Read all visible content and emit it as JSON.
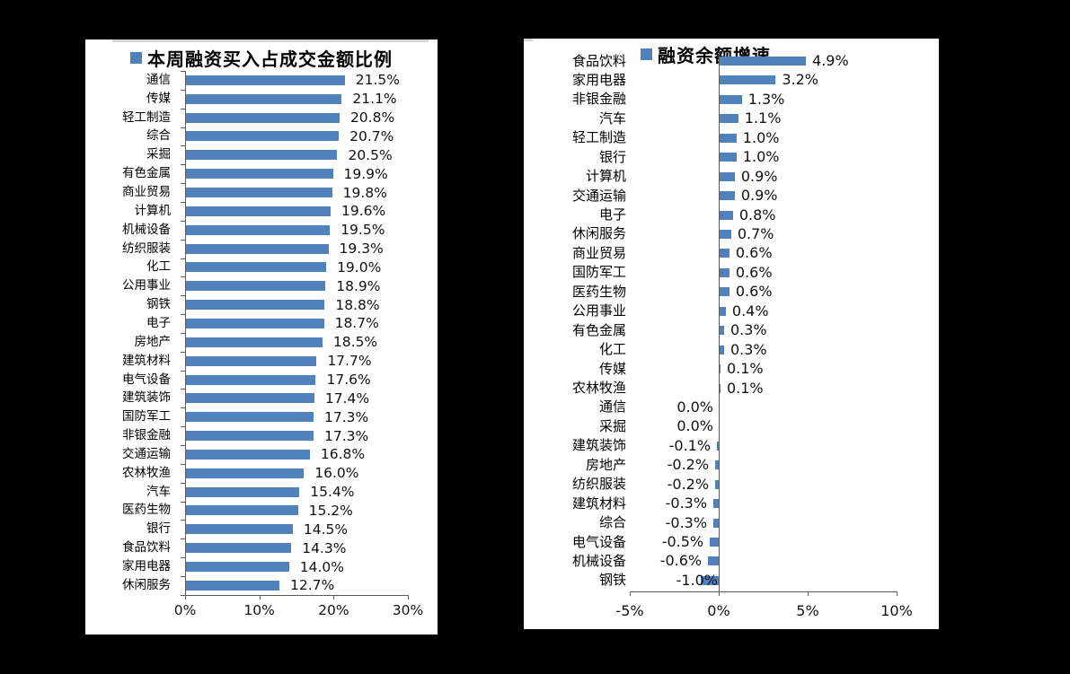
{
  "style": {
    "background": "#000000",
    "panel_background": "#ffffff",
    "bar_color": "#4f81bd",
    "axis_color": "#595959",
    "text_color": "#000000"
  },
  "chart_data": [
    {
      "type": "bar",
      "orientation": "horizontal",
      "title": "本周融资买入占成交金额比例",
      "legend_position": "top",
      "grid": false,
      "bar_color": "#4f81bd",
      "xlim": [
        0,
        30
      ],
      "x_tick_values": [
        0,
        10,
        20,
        30
      ],
      "x_tick_labels": [
        "0%",
        "10%",
        "20%",
        "30%"
      ],
      "unit": "%",
      "categories": [
        "通信",
        "传媒",
        "轻工制造",
        "综合",
        "采掘",
        "有色金属",
        "商业贸易",
        "计算机",
        "机械设备",
        "纺织服装",
        "化工",
        "公用事业",
        "钢铁",
        "电子",
        "房地产",
        "建筑材料",
        "电气设备",
        "建筑装饰",
        "国防军工",
        "非银金融",
        "交通运输",
        "农林牧渔",
        "汽车",
        "医药生物",
        "银行",
        "食品饮料",
        "家用电器",
        "休闲服务"
      ],
      "values": [
        21.5,
        21.1,
        20.8,
        20.7,
        20.5,
        19.9,
        19.8,
        19.6,
        19.5,
        19.3,
        19.0,
        18.9,
        18.8,
        18.7,
        18.5,
        17.7,
        17.6,
        17.4,
        17.3,
        17.3,
        16.8,
        16.0,
        15.4,
        15.2,
        14.5,
        14.3,
        14.0,
        12.7
      ],
      "value_labels": [
        "21.5%",
        "21.1%",
        "20.8%",
        "20.7%",
        "20.5%",
        "19.9%",
        "19.8%",
        "19.6%",
        "19.5%",
        "19.3%",
        "19.0%",
        "18.9%",
        "18.8%",
        "18.7%",
        "18.5%",
        "17.7%",
        "17.6%",
        "17.4%",
        "17.3%",
        "17.3%",
        "16.8%",
        "16.0%",
        "15.4%",
        "15.2%",
        "14.5%",
        "14.3%",
        "14.0%",
        "12.7%"
      ]
    },
    {
      "type": "bar",
      "orientation": "horizontal",
      "title": "融资余额增速",
      "legend_position": "top",
      "grid": false,
      "bar_color": "#4f81bd",
      "xlim": [
        -5,
        10
      ],
      "x_tick_values": [
        -5,
        0,
        5,
        10
      ],
      "x_tick_labels": [
        "-5%",
        "0%",
        "5%",
        "10%"
      ],
      "unit": "%",
      "categories": [
        "食品饮料",
        "家用电器",
        "非银金融",
        "汽车",
        "轻工制造",
        "银行",
        "计算机",
        "交通运输",
        "电子",
        "休闲服务",
        "商业贸易",
        "国防军工",
        "医药生物",
        "公用事业",
        "有色金属",
        "化工",
        "传媒",
        "农林牧渔",
        "通信",
        "采掘",
        "建筑装饰",
        "房地产",
        "纺织服装",
        "建筑材料",
        "综合",
        "电气设备",
        "机械设备",
        "钢铁"
      ],
      "values": [
        4.9,
        3.2,
        1.3,
        1.1,
        1.0,
        1.0,
        0.9,
        0.9,
        0.8,
        0.7,
        0.6,
        0.6,
        0.6,
        0.4,
        0.3,
        0.3,
        0.1,
        0.1,
        0.0,
        0.0,
        -0.1,
        -0.2,
        -0.2,
        -0.3,
        -0.3,
        -0.5,
        -0.6,
        -1.0
      ],
      "value_labels": [
        "4.9%",
        "3.2%",
        "1.3%",
        "1.1%",
        "1.0%",
        "1.0%",
        "0.9%",
        "0.9%",
        "0.8%",
        "0.7%",
        "0.6%",
        "0.6%",
        "0.6%",
        "0.4%",
        "0.3%",
        "0.3%",
        "0.1%",
        "0.1%",
        "0.0%",
        "0.0%",
        "-0.1%",
        "-0.2%",
        "-0.2%",
        "-0.3%",
        "-0.3%",
        "-0.5%",
        "-0.6%",
        "-1.0%"
      ]
    }
  ]
}
